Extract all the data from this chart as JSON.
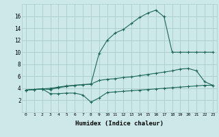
{
  "xlabel": "Humidex (Indice chaleur)",
  "bg_color": "#cce8e8",
  "grid_color": "#aacccc",
  "line_color": "#1a6655",
  "line1_x": [
    0,
    1,
    2,
    3,
    4,
    5,
    6,
    7,
    8,
    9,
    10,
    11,
    12,
    13,
    14,
    15,
    16,
    17,
    18,
    19,
    20,
    21,
    22,
    23
  ],
  "line1_y": [
    3.7,
    3.8,
    3.9,
    3.8,
    4.1,
    4.3,
    4.5,
    4.6,
    4.7,
    9.8,
    12.0,
    13.2,
    13.8,
    14.8,
    15.8,
    16.5,
    17.0,
    15.9,
    10.0,
    10.0,
    10.0,
    10.0,
    10.0,
    10.0
  ],
  "line2_x": [
    0,
    1,
    2,
    3,
    4,
    5,
    6,
    7,
    8,
    9,
    10,
    11,
    12,
    13,
    14,
    15,
    16,
    17,
    18,
    19,
    20,
    21,
    22,
    23
  ],
  "line2_y": [
    3.7,
    3.8,
    3.9,
    4.0,
    4.2,
    4.4,
    4.5,
    4.6,
    4.7,
    5.3,
    5.5,
    5.6,
    5.8,
    5.9,
    6.1,
    6.3,
    6.5,
    6.7,
    6.9,
    7.2,
    7.3,
    6.9,
    5.1,
    4.5
  ],
  "line3_x": [
    0,
    1,
    2,
    3,
    4,
    5,
    6,
    7,
    8,
    9,
    10,
    11,
    12,
    13,
    14,
    15,
    16,
    17,
    18,
    19,
    20,
    21,
    22,
    23
  ],
  "line3_y": [
    3.7,
    3.8,
    3.9,
    3.1,
    3.1,
    3.2,
    3.2,
    2.9,
    1.7,
    2.4,
    3.3,
    3.4,
    3.5,
    3.6,
    3.7,
    3.8,
    3.9,
    4.0,
    4.1,
    4.2,
    4.3,
    4.4,
    4.5,
    4.5
  ],
  "ylim": [
    0,
    18
  ],
  "xlim": [
    -0.5,
    23.5
  ],
  "yticks": [
    2,
    4,
    6,
    8,
    10,
    12,
    14,
    16
  ],
  "xticks": [
    0,
    1,
    2,
    3,
    4,
    5,
    6,
    7,
    8,
    9,
    10,
    11,
    12,
    13,
    14,
    15,
    16,
    17,
    18,
    19,
    20,
    21,
    22,
    23
  ]
}
